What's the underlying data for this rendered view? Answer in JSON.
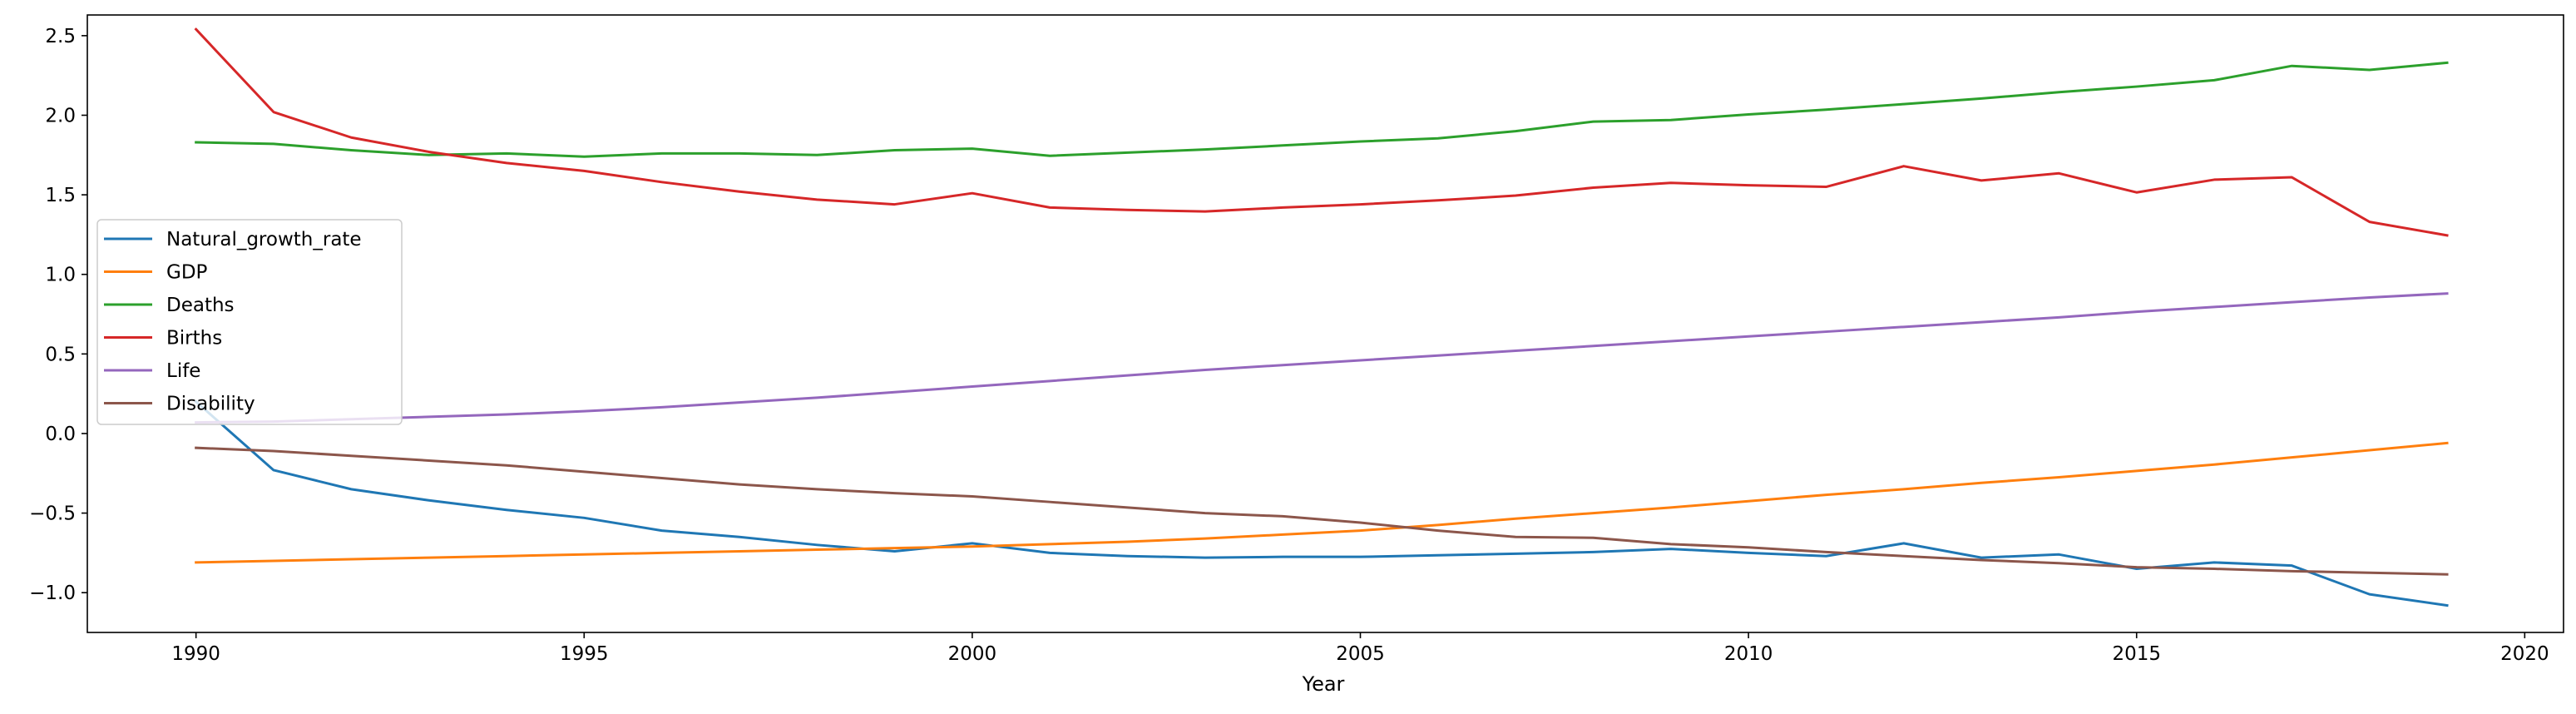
{
  "chart_data": {
    "type": "line",
    "title": "",
    "xlabel": "Year",
    "ylabel": "",
    "xlim": [
      1988.6,
      2020.5
    ],
    "ylim": [
      -1.25,
      2.63
    ],
    "xticks": [
      1990,
      1995,
      2000,
      2005,
      2010,
      2015,
      2020
    ],
    "yticks": [
      -1.0,
      -0.5,
      0.0,
      0.5,
      1.0,
      1.5,
      2.0,
      2.5
    ],
    "xtick_labels": [
      "1990",
      "1995",
      "2000",
      "2005",
      "2010",
      "2015",
      "2020"
    ],
    "ytick_labels": [
      "−1.0",
      "−0.5",
      "0.0",
      "0.5",
      "1.0",
      "1.5",
      "2.0",
      "2.5"
    ],
    "grid": false,
    "legend_position": "center-left",
    "x": [
      1990,
      1991,
      1992,
      1993,
      1994,
      1995,
      1996,
      1997,
      1998,
      1999,
      2000,
      2001,
      2002,
      2003,
      2004,
      2005,
      2006,
      2007,
      2008,
      2009,
      2010,
      2011,
      2012,
      2013,
      2014,
      2015,
      2016,
      2017,
      2018,
      2019
    ],
    "series": [
      {
        "name": "Natural_growth_rate",
        "color": "#1f77b4",
        "values": [
          0.2,
          -0.23,
          -0.35,
          -0.42,
          -0.48,
          -0.53,
          -0.61,
          -0.65,
          -0.7,
          -0.74,
          -0.69,
          -0.75,
          -0.77,
          -0.78,
          -0.775,
          -0.775,
          -0.765,
          -0.755,
          -0.745,
          -0.725,
          -0.75,
          -0.77,
          -0.69,
          -0.78,
          -0.76,
          -0.85,
          -0.81,
          -0.83,
          -1.01,
          -1.08
        ]
      },
      {
        "name": "GDP",
        "color": "#ff7f0e",
        "values": [
          -0.81,
          -0.8,
          -0.79,
          -0.78,
          -0.77,
          -0.76,
          -0.75,
          -0.74,
          -0.73,
          -0.72,
          -0.71,
          -0.695,
          -0.68,
          -0.66,
          -0.635,
          -0.61,
          -0.575,
          -0.535,
          -0.5,
          -0.465,
          -0.425,
          -0.385,
          -0.35,
          -0.31,
          -0.275,
          -0.235,
          -0.195,
          -0.15,
          -0.105,
          -0.06
        ]
      },
      {
        "name": "Deaths",
        "color": "#2ca02c",
        "values": [
          1.83,
          1.82,
          1.78,
          1.75,
          1.76,
          1.74,
          1.76,
          1.76,
          1.75,
          1.78,
          1.79,
          1.745,
          1.765,
          1.785,
          1.81,
          1.835,
          1.855,
          1.9,
          1.96,
          1.97,
          2.005,
          2.035,
          2.07,
          2.105,
          2.145,
          2.18,
          2.22,
          2.31,
          2.285,
          2.33
        ]
      },
      {
        "name": "Births",
        "color": "#d62728",
        "values": [
          2.54,
          2.02,
          1.86,
          1.77,
          1.7,
          1.65,
          1.58,
          1.52,
          1.47,
          1.44,
          1.51,
          1.42,
          1.405,
          1.395,
          1.42,
          1.44,
          1.465,
          1.495,
          1.545,
          1.575,
          1.56,
          1.55,
          1.68,
          1.59,
          1.635,
          1.515,
          1.595,
          1.61,
          1.33,
          1.245
        ]
      },
      {
        "name": "Life",
        "color": "#9467bd",
        "values": [
          0.07,
          0.075,
          0.09,
          0.105,
          0.12,
          0.14,
          0.165,
          0.195,
          0.225,
          0.26,
          0.295,
          0.33,
          0.365,
          0.4,
          0.43,
          0.46,
          0.49,
          0.52,
          0.55,
          0.58,
          0.61,
          0.64,
          0.67,
          0.7,
          0.73,
          0.765,
          0.795,
          0.825,
          0.855,
          0.88
        ]
      },
      {
        "name": "Disability",
        "color": "#8c564b",
        "values": [
          -0.09,
          -0.11,
          -0.14,
          -0.17,
          -0.2,
          -0.24,
          -0.28,
          -0.32,
          -0.35,
          -0.375,
          -0.395,
          -0.43,
          -0.465,
          -0.5,
          -0.52,
          -0.56,
          -0.61,
          -0.65,
          -0.655,
          -0.695,
          -0.715,
          -0.745,
          -0.77,
          -0.795,
          -0.815,
          -0.84,
          -0.85,
          -0.865,
          -0.875,
          -0.885
        ]
      }
    ]
  }
}
